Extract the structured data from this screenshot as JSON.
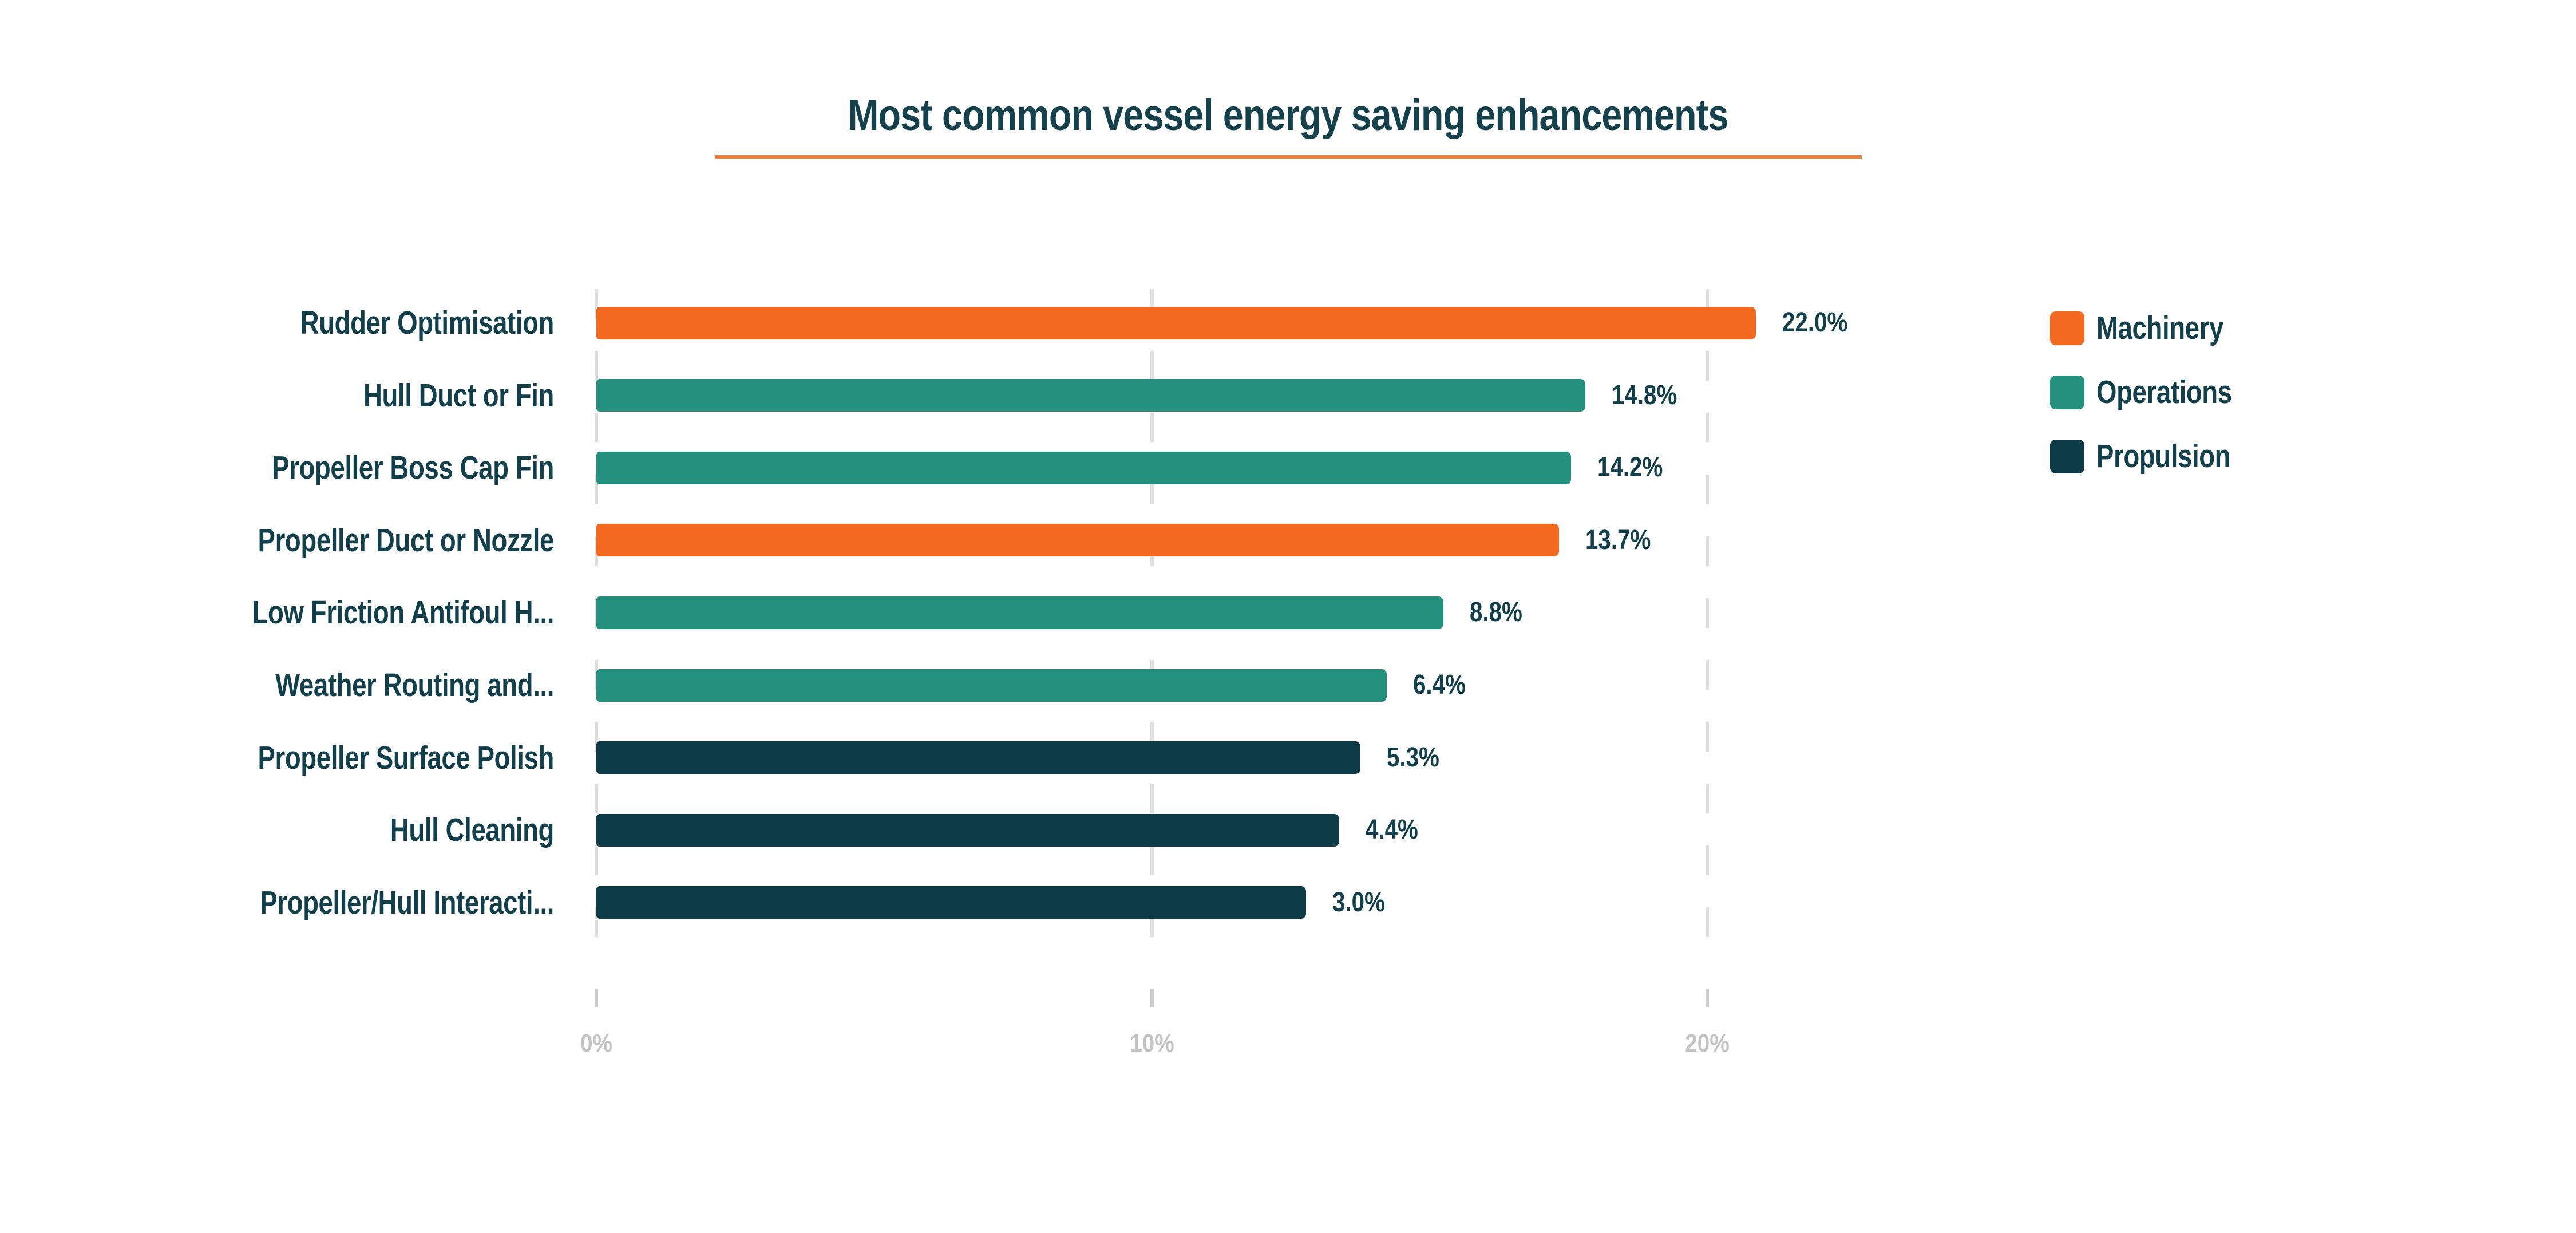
{
  "page": {
    "background_color": "#FFFFFF"
  },
  "title": {
    "text": "Most common vessel energy saving enhancements",
    "color": "#15414D",
    "underline_color": "#EF7D33"
  },
  "legend": {
    "position": "right",
    "items": [
      {
        "label": "Machinery",
        "color": "#F3691F"
      },
      {
        "label": "Operations",
        "color": "#24907E"
      },
      {
        "label": "Propulsion",
        "color": "#0D3B48"
      }
    ]
  },
  "axis": {
    "ticks": [
      {
        "label": "0%",
        "pct": 0
      },
      {
        "label": "10%",
        "pct": 10
      },
      {
        "label": "20%",
        "pct": 20
      }
    ],
    "tick_text_color": "#C2C2C2",
    "tick_mark_color": "#CCCCCC",
    "gridline_color": "#DFDFDF",
    "gridline_style": "dashed"
  },
  "chart_data": {
    "type": "bar",
    "orientation": "horizontal",
    "title": "Most common vessel energy saving enhancements",
    "categories": [
      "Rudder Optimisation",
      "Hull Duct or Fin",
      "Propeller Boss Cap Fin",
      "Propeller Duct or Nozzle",
      "Low Friction Antifoul H...",
      "Weather Routing and...",
      "Propeller Surface Polish",
      "Hull Cleaning",
      "Propeller/Hull Interacti..."
    ],
    "values": [
      22.0,
      14.8,
      14.2,
      13.7,
      8.8,
      6.4,
      5.3,
      4.4,
      3.0
    ],
    "value_labels": [
      "22.0%",
      "14.8%",
      "14.2%",
      "13.7%",
      "8.8%",
      "6.4%",
      "5.3%",
      "4.4%",
      "3.0%"
    ],
    "bar_groups": [
      "Machinery",
      "Operations",
      "Operations",
      "Machinery",
      "Operations",
      "Operations",
      "Propulsion",
      "Propulsion",
      "Propulsion"
    ],
    "group_colors": {
      "Machinery": "#F3691F",
      "Operations": "#24907E",
      "Propulsion": "#0D3B48"
    },
    "x_ticks": [
      "0%",
      "10%",
      "20%"
    ],
    "xlim": [
      0,
      22
    ],
    "xlabel": "",
    "ylabel": "",
    "grid": "vertical-dashed",
    "legend_position": "right",
    "legend_entries": [
      "Machinery",
      "Operations",
      "Propulsion"
    ]
  }
}
